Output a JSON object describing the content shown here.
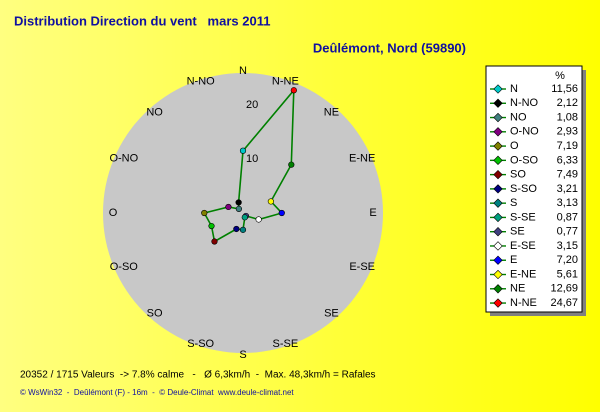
{
  "chart_data": {
    "type": "radar",
    "title": "Distribution Direction du vent   mars 2011",
    "subtitle": "Deûlémont, Nord (59890)",
    "categories": [
      "N",
      "N-NE",
      "NE",
      "E-NE",
      "E",
      "E-SE",
      "SE",
      "S-SE",
      "S",
      "S-SO",
      "SO",
      "O-SO",
      "O",
      "O-NO",
      "NO",
      "N-NO"
    ],
    "values": [
      11.56,
      24.67,
      12.69,
      5.61,
      7.2,
      3.15,
      0.77,
      0.87,
      3.13,
      3.21,
      7.49,
      6.33,
      7.19,
      2.93,
      1.08,
      2.12
    ],
    "value_labels": [
      "11,56",
      "24,67",
      "12,69",
      "5,61",
      "7,20",
      "3,15",
      "0,77",
      "0,87",
      "3,13",
      "3,21",
      "7,49",
      "6,33",
      "7,19",
      "2,93",
      "1,08",
      "2,12"
    ],
    "marker_colors": [
      "#00c8c8",
      "#ff0000",
      "#008000",
      "#ffff00",
      "#0000ff",
      "#ffffff",
      "#404080",
      "#00a080",
      "#008080",
      "#000080",
      "#800000",
      "#00c000",
      "#808000",
      "#800080",
      "#408080",
      "#000000"
    ],
    "line_color": "#008000",
    "rlim": [
      0,
      26
    ],
    "rticks": [
      10,
      20
    ],
    "legend_title": "%",
    "footer": "20352 / 1715 Valeurs  -> 7.8% calme   -   Ø 6,3km/h  -  Max. 48,3km/h = Rafales",
    "credits": "© WsWin32  -  Deûlémont (F) - 16m  -  © Deule-Climat  www.deule-climat.net"
  }
}
